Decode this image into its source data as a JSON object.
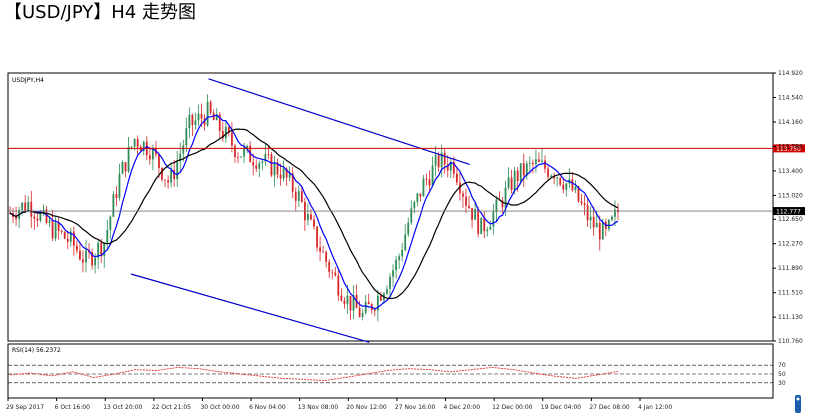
{
  "page": {
    "title": "【USD/JPY】H4 走势图"
  },
  "colors": {
    "background": "#ffffff",
    "bull_candle": "#2e8b57",
    "bear_candle": "#d62728",
    "ma_fast": "#0000ff",
    "ma_slow": "#000000",
    "channel": "#0000cc",
    "resistance": "#cc0000",
    "rsi_line": "#e03030"
  },
  "chart_data": [
    {
      "type": "candlestick",
      "symbol_label": "USDJPY,H4",
      "ylim": [
        110.76,
        114.92
      ],
      "y_ticks": [
        "114.920",
        "114.540",
        "114.160",
        "113.780",
        "113.400",
        "113.020",
        "112.650",
        "112.270",
        "111.890",
        "111.510",
        "111.130",
        "110.760"
      ],
      "x_ticks": [
        "29 Sep 2017",
        "6 Oct 16:00",
        "13 Oct 20:00",
        "22 Oct 21:05",
        "30 Oct 00:00",
        "6 Nov 04:00",
        "13 Nov 08:00",
        "20 Nov 12:00",
        "27 Nov 16:00",
        "4 Dec 20:00",
        "12 Dec 00:00",
        "19 Dec 04:00",
        "27 Dec 08:00",
        "4 Jan 12:00"
      ],
      "current_price": "112.777",
      "resistance_price": "113.750",
      "price_path": [
        [
          0,
          112.75
        ],
        [
          12,
          112.9
        ],
        [
          25,
          112.55
        ],
        [
          40,
          112.3
        ],
        [
          50,
          112.0
        ],
        [
          62,
          112.3
        ],
        [
          72,
          113.3
        ],
        [
          82,
          113.9
        ],
        [
          92,
          113.75
        ],
        [
          105,
          113.2
        ],
        [
          118,
          114.1
        ],
        [
          130,
          114.3
        ],
        [
          140,
          114.0
        ],
        [
          150,
          113.7
        ],
        [
          162,
          113.6
        ],
        [
          178,
          113.4
        ],
        [
          190,
          113.0
        ],
        [
          200,
          112.4
        ],
        [
          212,
          111.8
        ],
        [
          222,
          111.4
        ],
        [
          232,
          111.15
        ],
        [
          242,
          111.45
        ],
        [
          255,
          112.0
        ],
        [
          262,
          112.6
        ],
        [
          272,
          113.2
        ],
        [
          282,
          113.55
        ],
        [
          292,
          113.5
        ],
        [
          300,
          112.95
        ],
        [
          310,
          112.5
        ],
        [
          320,
          112.8
        ],
        [
          332,
          113.3
        ],
        [
          345,
          113.5
        ],
        [
          358,
          113.4
        ],
        [
          370,
          113.1
        ],
        [
          382,
          112.6
        ],
        [
          392,
          112.4
        ],
        [
          400,
          112.77
        ]
      ],
      "channel_upper": [
        [
          104.07,
          114.83
        ],
        [
          240.98,
          113.5
        ]
      ],
      "channel_lower": [
        [
          63.39,
          111.8
        ],
        [
          188.37,
          110.74
        ]
      ],
      "moving_averages": [
        "fast",
        "slow"
      ]
    },
    {
      "type": "line",
      "indicator_label": "RSI(14) 56.2372",
      "ylim": [
        0,
        100
      ],
      "levels": [
        30,
        50,
        70
      ],
      "y_ticks": [
        "70",
        "50",
        "30"
      ],
      "values": [
        48,
        52,
        46,
        55,
        42,
        50,
        60,
        58,
        65,
        62,
        55,
        50,
        45,
        40,
        38,
        35,
        42,
        50,
        58,
        62,
        60,
        55,
        60,
        65,
        60,
        52,
        45,
        40,
        48,
        56
      ],
      "current": 56.2372
    }
  ]
}
